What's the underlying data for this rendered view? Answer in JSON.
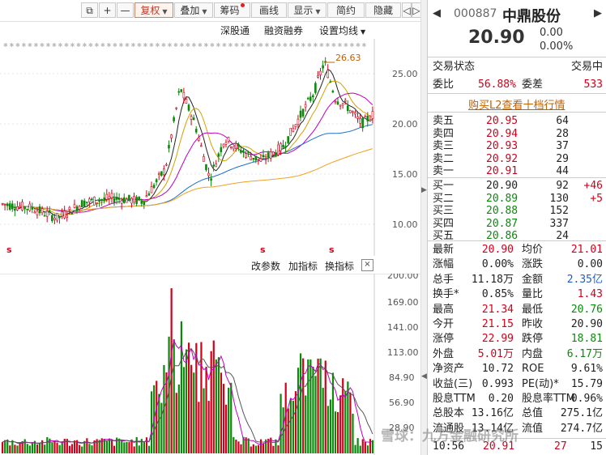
{
  "toolbar": {
    "restore_icon": "window-restore-icon",
    "plus": "+",
    "minus": "—",
    "buttons": [
      "复权",
      "叠加",
      "筹码",
      "画线",
      "显示",
      "简约",
      "隐藏"
    ],
    "nav_prev": "◁",
    "nav_next": "▷"
  },
  "subbar": {
    "shenguton": "深股通",
    "rongzi": "融资融券",
    "ma_setting": "设置均线"
  },
  "price_axis": {
    "labels": [
      "25.00",
      "20.00",
      "15.00",
      "10.00"
    ],
    "peak_label": "26.63"
  },
  "volume_axis": {
    "labels": [
      "200.00",
      "169.00",
      "141.00",
      "113.00",
      "84.90",
      "56.90",
      "28.90"
    ]
  },
  "markers": [
    "s",
    "s",
    "s"
  ],
  "midbar": {
    "change_params": "改参数",
    "add_indicator": "加指标",
    "switch_indicator": "换指标",
    "close": "×"
  },
  "stock": {
    "code": "000887",
    "name": "中鼎股份",
    "price": "20.90",
    "change": "0.00",
    "change_pct": "0.00%"
  },
  "status": {
    "label": "交易状态",
    "value": "交易中"
  },
  "wb": {
    "wb_label": "委比",
    "wb_value": "56.88%",
    "wc_label": "委差",
    "wc_value": "533"
  },
  "l2_link": "购买L2查看十档行情",
  "sells": [
    {
      "label": "卖五",
      "price": "20.95",
      "vol": "64",
      "delta": ""
    },
    {
      "label": "卖四",
      "price": "20.94",
      "vol": "28",
      "delta": ""
    },
    {
      "label": "卖三",
      "price": "20.93",
      "vol": "37",
      "delta": ""
    },
    {
      "label": "卖二",
      "price": "20.92",
      "vol": "29",
      "delta": ""
    },
    {
      "label": "卖一",
      "price": "20.91",
      "vol": "44",
      "delta": ""
    }
  ],
  "buys": [
    {
      "label": "买一",
      "price": "20.90",
      "vol": "92",
      "delta": "+46"
    },
    {
      "label": "买二",
      "price": "20.89",
      "vol": "130",
      "delta": "+5"
    },
    {
      "label": "买三",
      "price": "20.88",
      "vol": "152",
      "delta": ""
    },
    {
      "label": "买四",
      "price": "20.87",
      "vol": "337",
      "delta": ""
    },
    {
      "label": "买五",
      "price": "20.86",
      "vol": "24",
      "delta": ""
    }
  ],
  "stats": [
    {
      "l1": "最新",
      "v1": "20.90",
      "c1": "red",
      "l2": "均价",
      "v2": "21.01",
      "c2": "red"
    },
    {
      "l1": "涨幅",
      "v1": "0.00%",
      "c1": "",
      "l2": "涨跌",
      "v2": "0.00",
      "c2": ""
    },
    {
      "l1": "总手",
      "v1": "11.18万",
      "c1": "",
      "l2": "金额",
      "v2": "2.35亿",
      "c2": "blue"
    },
    {
      "l1": "换手*",
      "v1": "0.85%",
      "c1": "",
      "l2": "量比",
      "v2": "1.43",
      "c2": "red"
    },
    {
      "l1": "最高",
      "v1": "21.34",
      "c1": "red",
      "l2": "最低",
      "v2": "20.76",
      "c2": "green"
    },
    {
      "l1": "今开",
      "v1": "21.15",
      "c1": "red",
      "l2": "昨收",
      "v2": "20.90",
      "c2": ""
    },
    {
      "l1": "涨停",
      "v1": "22.99",
      "c1": "red",
      "l2": "跌停",
      "v2": "18.81",
      "c2": "green"
    },
    {
      "l1": "外盘",
      "v1": "5.01万",
      "c1": "red",
      "l2": "内盘",
      "v2": "6.17万",
      "c2": "green"
    },
    {
      "l1": "净资产",
      "v1": "10.72",
      "c1": "",
      "l2": "ROE",
      "v2": "9.61%",
      "c2": ""
    },
    {
      "l1": "收益(三)",
      "v1": "0.993",
      "c1": "",
      "l2": "PE(动)*",
      "v2": "15.79",
      "c2": ""
    },
    {
      "l1": "股息TTM",
      "v1": "0.20",
      "c1": "",
      "l2": "股息率TTM",
      "v2": "0.96%",
      "c2": ""
    },
    {
      "l1": "总股本",
      "v1": "13.16亿",
      "c1": "",
      "l2": "总值",
      "v2": "275.1亿",
      "c2": ""
    },
    {
      "l1": "流通股",
      "v1": "13.14亿",
      "c1": "",
      "l2": "流值",
      "v2": "274.7亿",
      "c2": ""
    }
  ],
  "tick": {
    "time": "10:56",
    "price": "20.91",
    "vol": "27",
    "count": "15"
  },
  "watermark": "雪球：九方金融研究所",
  "colors": {
    "up": "#d0021b",
    "down": "#0a8a0a",
    "ma5": "#222222",
    "ma10": "#d4a000",
    "ma20": "#c000c0",
    "ma60": "#1f6fd0",
    "ma120": "#f0a020"
  }
}
